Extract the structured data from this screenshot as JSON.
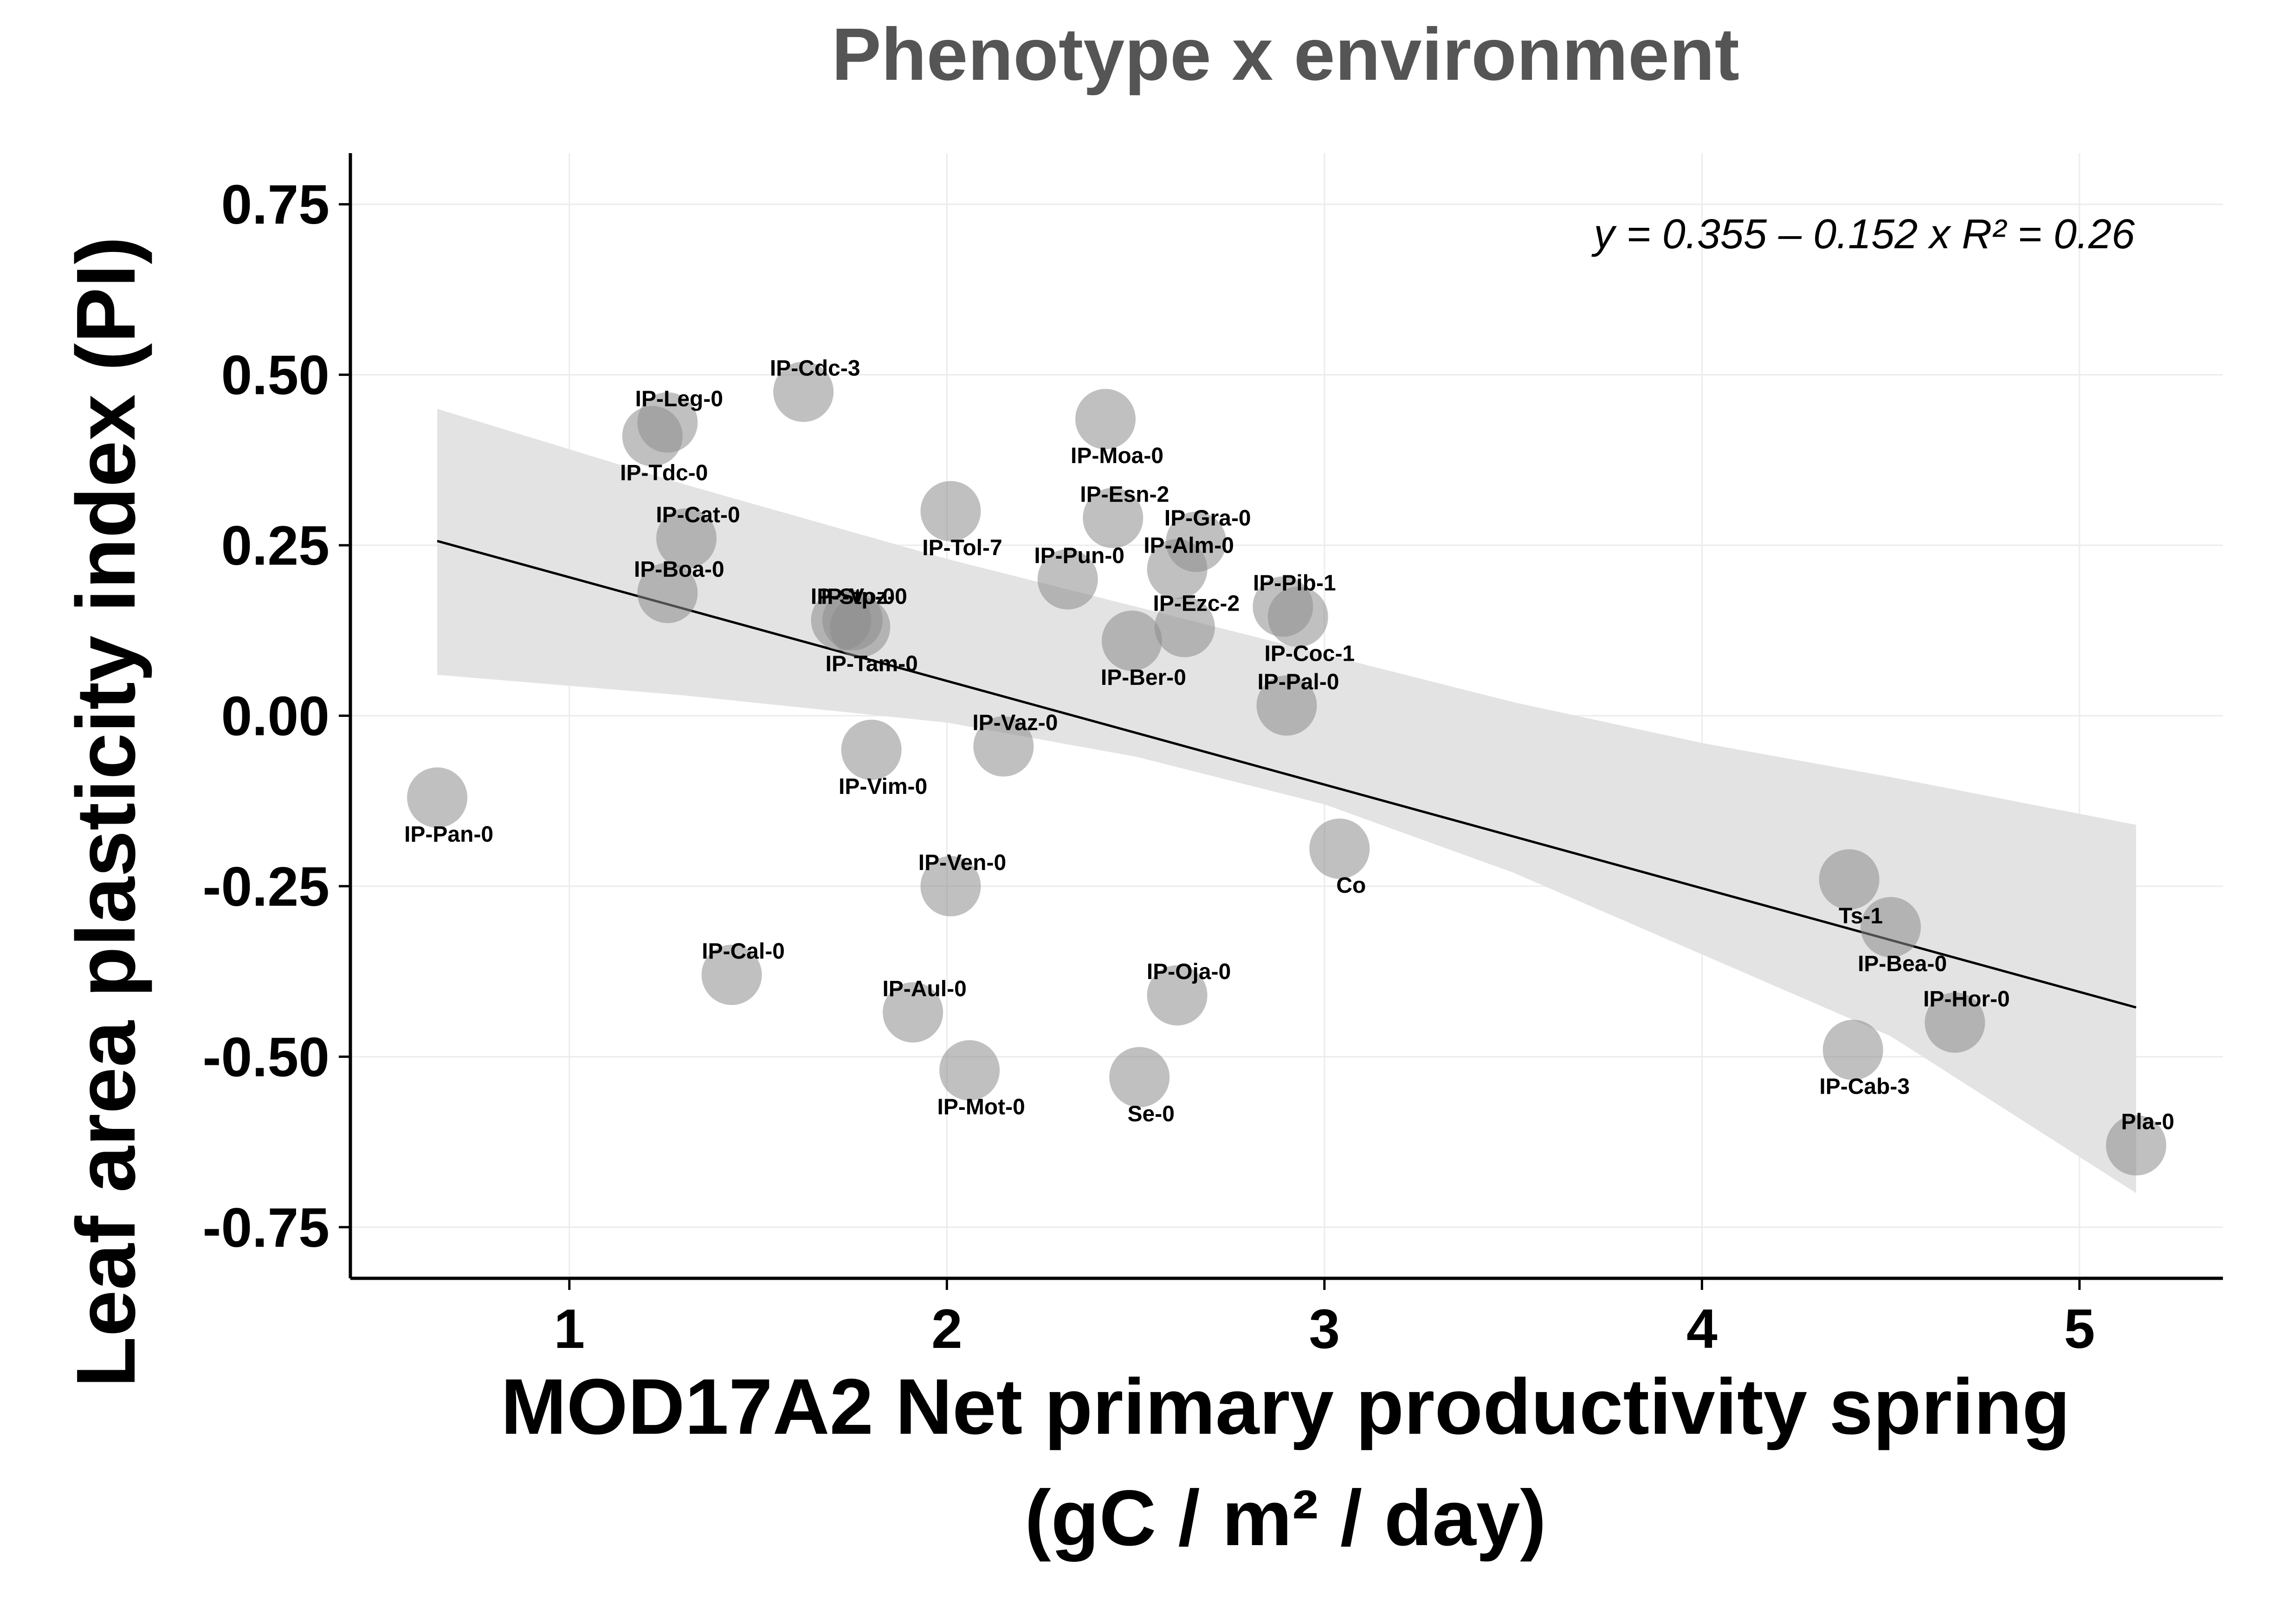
{
  "chart_data": {
    "type": "scatter",
    "title": "Phenotype x environment",
    "xlabel_line1": "MOD17A2 Net primary productivity spring",
    "xlabel_line2": "(gC / m² / day)",
    "ylabel": "Leaf area plasticity index (PI)",
    "equation": "y = 0.355 – 0.152 x   R² = 0.26",
    "xlim": [
      0.42,
      5.38
    ],
    "ylim": [
      -0.825,
      0.825
    ],
    "xticks": [
      1,
      2,
      3,
      4,
      5
    ],
    "xtick_labels": [
      "1",
      "2",
      "3",
      "4",
      "5"
    ],
    "yticks": [
      0.75,
      0.5,
      0.25,
      0.0,
      -0.25,
      -0.5,
      -0.75
    ],
    "ytick_labels": [
      "0.75",
      "0.50",
      "0.25",
      "0.00",
      "-0.25",
      "-0.50",
      "-0.75"
    ],
    "grid": true,
    "regression": {
      "intercept": 0.355,
      "slope": -0.152,
      "r2": 0.26,
      "x_range": [
        0.65,
        5.15
      ],
      "ci_band": {
        "x": [
          0.65,
          1.3,
          2.0,
          2.5,
          3.0,
          3.5,
          4.0,
          4.5,
          5.15
        ],
        "upper": [
          0.45,
          0.34,
          0.23,
          0.16,
          0.09,
          0.02,
          -0.04,
          -0.09,
          -0.16
        ],
        "lower": [
          0.06,
          0.03,
          -0.01,
          -0.06,
          -0.13,
          -0.23,
          -0.35,
          -0.47,
          -0.7
        ]
      }
    },
    "points": [
      {
        "label": "IP-Pan-0",
        "x": 0.65,
        "y": -0.12
      },
      {
        "label": "IP-Tdc-0",
        "x": 1.22,
        "y": 0.41
      },
      {
        "label": "IP-Leg-0",
        "x": 1.26,
        "y": 0.43
      },
      {
        "label": "IP-Cat-0",
        "x": 1.31,
        "y": 0.26
      },
      {
        "label": "IP-Boa-0",
        "x": 1.26,
        "y": 0.18
      },
      {
        "label": "IP-Cal-0",
        "x": 1.43,
        "y": -0.38
      },
      {
        "label": "IP-Cdc-3",
        "x": 1.62,
        "y": 0.475
      },
      {
        "label": "IP-Stp-0",
        "x": 1.72,
        "y": 0.14
      },
      {
        "label": "IP-Tam-0",
        "x": 1.77,
        "y": 0.13
      },
      {
        "label": "IP-Voz-0",
        "x": 1.75,
        "y": 0.14
      },
      {
        "label": "IP-Vim-0",
        "x": 1.8,
        "y": -0.05
      },
      {
        "label": "IP-Aul-0",
        "x": 1.91,
        "y": -0.435
      },
      {
        "label": "IP-Ven-0",
        "x": 2.01,
        "y": -0.25
      },
      {
        "label": "IP-Tol-7",
        "x": 2.01,
        "y": 0.3
      },
      {
        "label": "IP-Mot-0",
        "x": 2.06,
        "y": -0.52
      },
      {
        "label": "IP-Vaz-0",
        "x": 2.15,
        "y": -0.045
      },
      {
        "label": "IP-Pun-0",
        "x": 2.32,
        "y": 0.2
      },
      {
        "label": "IP-Moa-0",
        "x": 2.42,
        "y": 0.435
      },
      {
        "label": "IP-Esn-2",
        "x": 2.44,
        "y": 0.29
      },
      {
        "label": "IP-Ber-0",
        "x": 2.49,
        "y": 0.11
      },
      {
        "label": "Se-0",
        "x": 2.51,
        "y": -0.53
      },
      {
        "label": "IP-Oja-0",
        "x": 2.61,
        "y": -0.41
      },
      {
        "label": "IP-Alm-0",
        "x": 2.61,
        "y": 0.215
      },
      {
        "label": "IP-Ezc-2",
        "x": 2.63,
        "y": 0.13
      },
      {
        "label": "IP-Gra-0",
        "x": 2.66,
        "y": 0.255
      },
      {
        "label": "IP-Pib-1",
        "x": 2.89,
        "y": 0.16
      },
      {
        "label": "IP-Coc-1",
        "x": 2.93,
        "y": 0.145
      },
      {
        "label": "IP-Pal-0",
        "x": 2.9,
        "y": 0.015
      },
      {
        "label": "Co",
        "x": 3.04,
        "y": -0.195
      },
      {
        "label": "Ts-1",
        "x": 4.39,
        "y": -0.24
      },
      {
        "label": "IP-Bea-0",
        "x": 4.5,
        "y": -0.31
      },
      {
        "label": "IP-Cab-3",
        "x": 4.4,
        "y": -0.49
      },
      {
        "label": "IP-Hor-0",
        "x": 4.67,
        "y": -0.45
      },
      {
        "label": "Pla-0",
        "x": 5.15,
        "y": -0.63
      }
    ],
    "colors": {
      "point_fill": "#8c8c8c",
      "ci_fill": "#e3e3e3",
      "line": "#000000",
      "grid": "#ececec",
      "title": "#555555"
    }
  }
}
